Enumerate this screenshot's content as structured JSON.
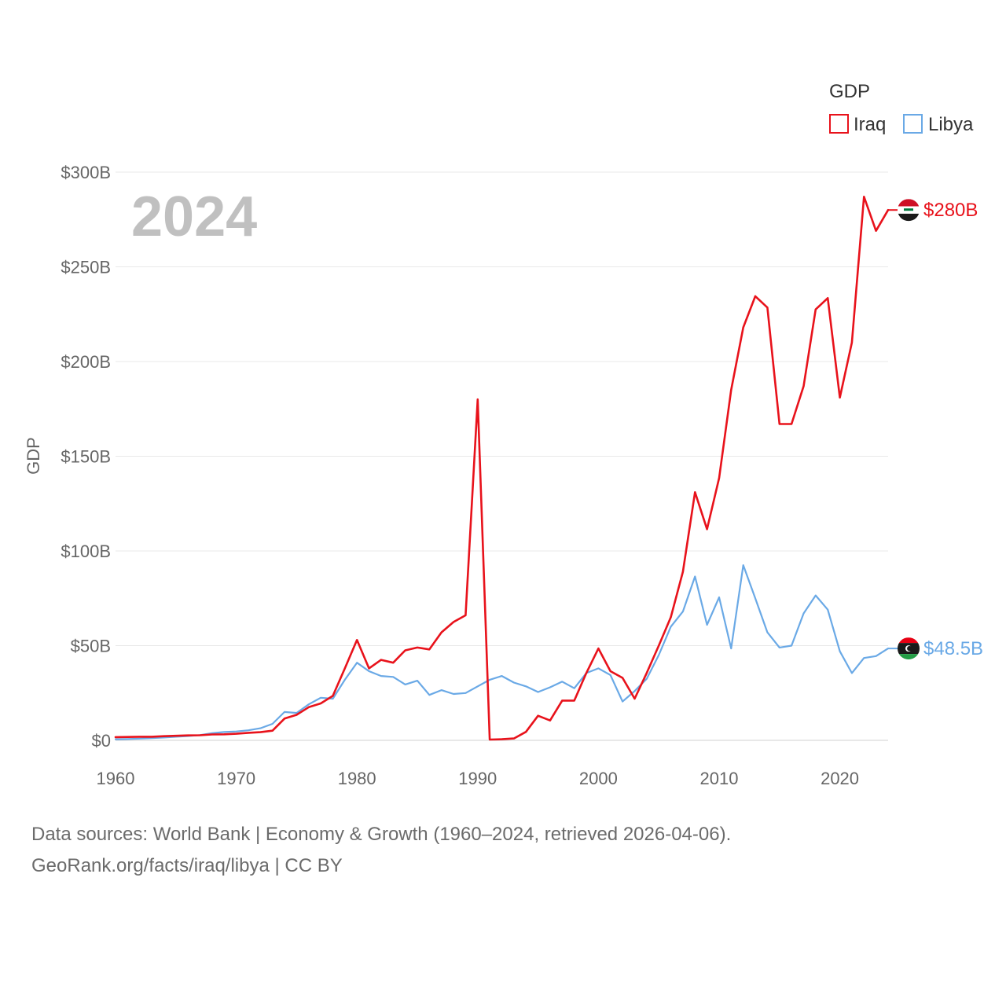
{
  "chart_data": {
    "type": "line",
    "title": "GDP",
    "year_label": "2024",
    "ylabel": "GDP",
    "xlabel": "",
    "xlim": [
      1960,
      2024
    ],
    "ylim": [
      0,
      300
    ],
    "y_unit": "billion USD",
    "x_ticks": [
      "1960",
      "1970",
      "1980",
      "1990",
      "2000",
      "2010",
      "2020"
    ],
    "y_ticks": [
      {
        "value": 0,
        "label": "$0"
      },
      {
        "value": 50,
        "label": "$50B"
      },
      {
        "value": 100,
        "label": "$100B"
      },
      {
        "value": 150,
        "label": "$150B"
      },
      {
        "value": 200,
        "label": "$200B"
      },
      {
        "value": 250,
        "label": "$250B"
      },
      {
        "value": 300,
        "label": "$300B"
      }
    ],
    "grid": true,
    "legend_position": "top-right",
    "x": [
      1960,
      1961,
      1962,
      1963,
      1964,
      1965,
      1966,
      1967,
      1968,
      1969,
      1970,
      1971,
      1972,
      1973,
      1974,
      1975,
      1976,
      1977,
      1978,
      1979,
      1980,
      1981,
      1982,
      1983,
      1984,
      1985,
      1986,
      1987,
      1988,
      1989,
      1990,
      1991,
      1992,
      1993,
      1994,
      1995,
      1996,
      1997,
      1998,
      1999,
      2000,
      2001,
      2002,
      2003,
      2004,
      2005,
      2006,
      2007,
      2008,
      2009,
      2010,
      2011,
      2012,
      2013,
      2014,
      2015,
      2016,
      2017,
      2018,
      2019,
      2020,
      2021,
      2022,
      2023,
      2024
    ],
    "series": [
      {
        "name": "Iraq",
        "color": "#e8121b",
        "end_label": "$280B",
        "flag": "iraq-flag-icon",
        "values": [
          1.7,
          1.8,
          1.9,
          1.9,
          2.2,
          2.4,
          2.6,
          2.7,
          3.1,
          3.2,
          3.5,
          4.0,
          4.3,
          5.1,
          11.5,
          13.5,
          17.5,
          19.5,
          23.5,
          38,
          53,
          38,
          42.5,
          41,
          47.5,
          49,
          48,
          57,
          62.5,
          66,
          180,
          0.4,
          0.6,
          1,
          4.5,
          13,
          10.5,
          21,
          21,
          35.5,
          48.5,
          36.5,
          33,
          22,
          35.5,
          50,
          65,
          89,
          131,
          111.5,
          138.5,
          185,
          218,
          234.5,
          228.5,
          167,
          167,
          187,
          227.5,
          233.5,
          181,
          210,
          287,
          269,
          280
        ]
      },
      {
        "name": "Libya",
        "color": "#6aa9e6",
        "end_label": "$48.5B",
        "flag": "libya-flag-icon",
        "values": [
          0.6,
          0.7,
          0.9,
          1.2,
          1.5,
          1.9,
          2.3,
          2.8,
          3.8,
          4.4,
          4.7,
          5.3,
          6.4,
          8.7,
          15,
          14.5,
          19,
          22.5,
          22,
          32,
          41,
          36.5,
          34,
          33.5,
          29.5,
          31.5,
          24,
          26.5,
          24.5,
          25,
          28.5,
          32,
          34,
          30.5,
          28.5,
          25.5,
          28,
          31,
          27.5,
          35.5,
          38,
          34.5,
          20.5,
          26,
          32.5,
          45,
          60,
          68,
          86.5,
          61,
          75.5,
          48.5,
          92.5,
          75,
          57,
          49,
          50,
          67,
          76.5,
          69,
          47,
          35.5,
          43.5,
          44.5,
          48.5
        ]
      }
    ]
  },
  "source": {
    "line1": "Data sources: World Bank | Economy & Growth (1960–2024, retrieved 2026-04-06).",
    "line2": "GeoRank.org/facts/iraq/libya | CC BY"
  }
}
